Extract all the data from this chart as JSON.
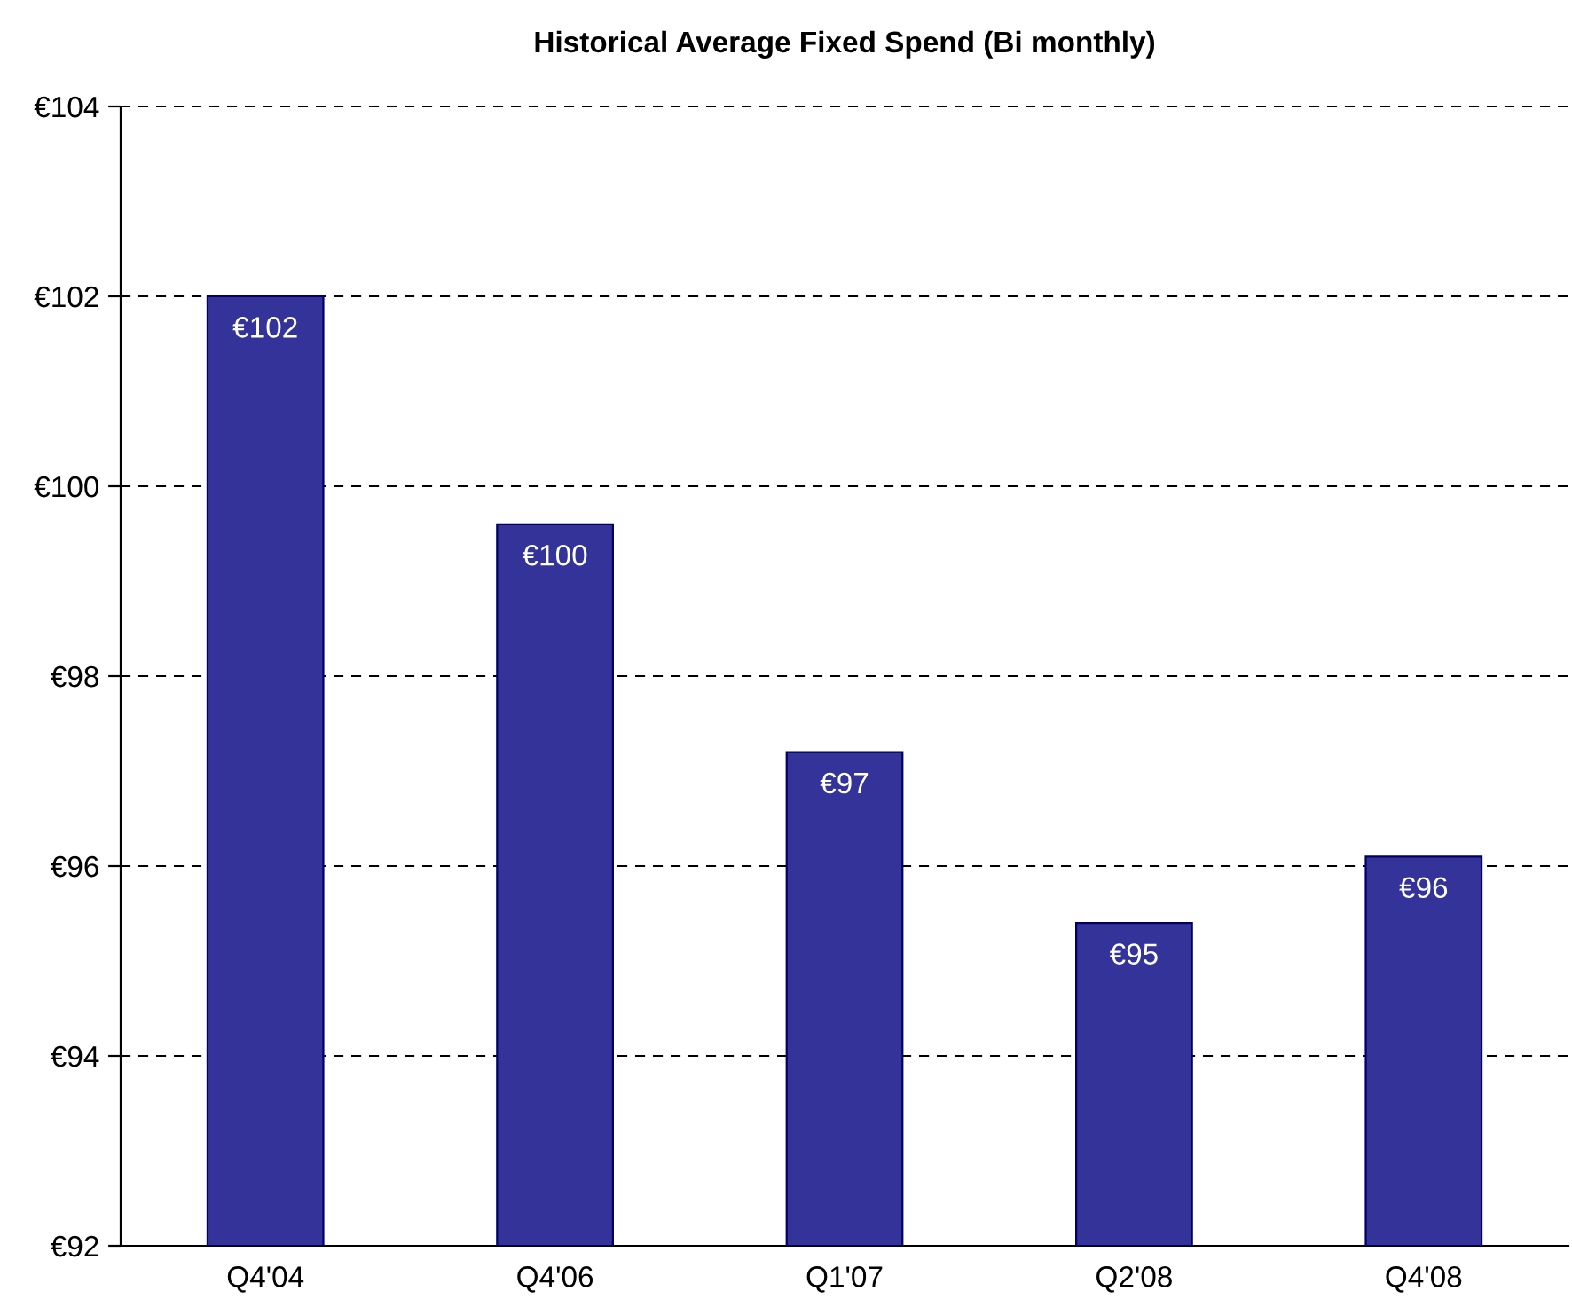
{
  "chart_data": {
    "type": "bar",
    "title": "Historical Average Fixed Spend (Bi monthly)",
    "categories": [
      "Q4'04",
      "Q4'06",
      "Q1'07",
      "Q2'08",
      "Q4'08"
    ],
    "values": [
      102.0,
      99.6,
      97.2,
      95.4,
      96.1
    ],
    "value_labels": [
      "€102",
      "€100",
      "€97",
      "€95",
      "€96"
    ],
    "color": "#333399",
    "ylim": [
      92,
      104
    ],
    "yticks": [
      {
        "value": 92,
        "label": "€92"
      },
      {
        "value": 94,
        "label": "€94"
      },
      {
        "value": 96,
        "label": "€96"
      },
      {
        "value": 98,
        "label": "€98"
      },
      {
        "value": 100,
        "label": "€100"
      },
      {
        "value": 102,
        "label": "€102"
      },
      {
        "value": 104,
        "label": "€104"
      }
    ],
    "grid": "y"
  }
}
